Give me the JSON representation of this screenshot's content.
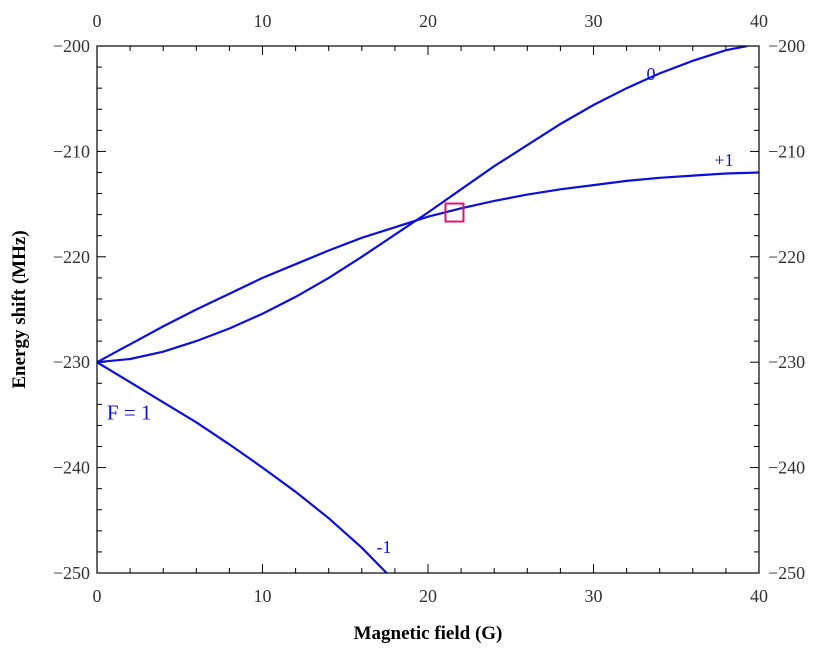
{
  "chart_data": {
    "type": "line",
    "title": "",
    "xlabel": "Magnetic field (G)",
    "ylabel": "Energy shift (MHz)",
    "xlim": [
      0,
      40
    ],
    "ylim": [
      -250,
      -200
    ],
    "x_ticks": [
      0,
      10,
      20,
      30,
      40
    ],
    "x_tick_labels": [
      "0",
      "10",
      "20",
      "30",
      "40"
    ],
    "y_ticks": [
      -250,
      -240,
      -230,
      -220,
      -210,
      -200
    ],
    "y_tick_labels": [
      "−250",
      "−240",
      "−230",
      "−220",
      "−210",
      "−200"
    ],
    "grid": false,
    "mirror_axes": true,
    "line_color": "#0a10d8",
    "series": [
      {
        "name": "0",
        "x": [
          0,
          2,
          4,
          6,
          8,
          10,
          12,
          14,
          16,
          18,
          20,
          22,
          24,
          26,
          28,
          30,
          32,
          34,
          36,
          38,
          39.3
        ],
        "y": [
          -230,
          -229.7,
          -229.0,
          -228.0,
          -226.8,
          -225.4,
          -223.8,
          -222.0,
          -220.0,
          -217.9,
          -215.8,
          -213.6,
          -211.4,
          -209.4,
          -207.4,
          -205.6,
          -204.0,
          -202.6,
          -201.4,
          -200.4,
          -200
        ]
      },
      {
        "name": "+1",
        "x": [
          0,
          2,
          4,
          6,
          8,
          10,
          12,
          14,
          16,
          18,
          20,
          22,
          24,
          26,
          28,
          30,
          32,
          34,
          36,
          38,
          40
        ],
        "y": [
          -230,
          -228.3,
          -226.6,
          -225.0,
          -223.5,
          -222.0,
          -220.7,
          -219.4,
          -218.2,
          -217.2,
          -216.2,
          -215.4,
          -214.7,
          -214.1,
          -213.6,
          -213.2,
          -212.8,
          -212.5,
          -212.3,
          -212.1,
          -212.0
        ]
      },
      {
        "name": "-1",
        "x": [
          0,
          2,
          4,
          6,
          8,
          10,
          12,
          14,
          16,
          17.5
        ],
        "y": [
          -230,
          -231.9,
          -233.8,
          -235.7,
          -237.8,
          -240.0,
          -242.3,
          -244.8,
          -247.6,
          -250
        ]
      }
    ],
    "annotations": [
      {
        "text": "F = 1",
        "x": 0.6,
        "y": -234.7
      }
    ],
    "highlight": {
      "shape": "square",
      "color": "#e8106e",
      "x": 21.6,
      "y": -215.8
    }
  }
}
